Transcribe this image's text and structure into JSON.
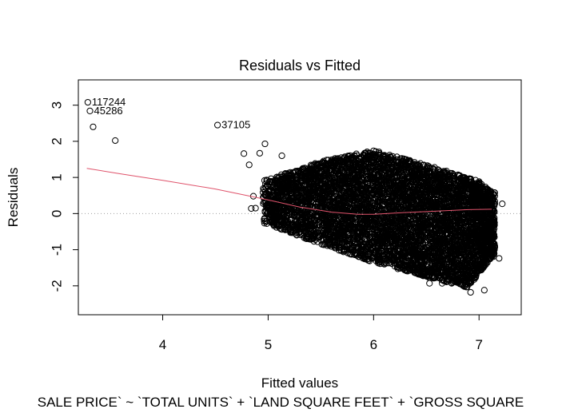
{
  "chart_data": {
    "type": "scatter",
    "title": "Residuals vs Fitted",
    "xlabel": "Fitted values",
    "ylabel": "Residuals",
    "subtitle": "SALE PRICE` ~ `TOTAL UNITS` + `LAND SQUARE FEET` + `GROSS SQUARE",
    "xlim": [
      3.2,
      7.4
    ],
    "ylim": [
      -2.8,
      3.7
    ],
    "x_ticks": [
      4,
      5,
      6,
      7
    ],
    "y_ticks": [
      -2,
      -1,
      0,
      1,
      2,
      3
    ],
    "zero_reference_line": 0,
    "grid": false,
    "legend": "none",
    "colors": {
      "points": "#000000",
      "smooth_line": "#df536b",
      "reference_line": "#a0a0a0"
    },
    "labeled_points": [
      {
        "label": "117244",
        "x": 3.29,
        "y": 3.08
      },
      {
        "label": "45286",
        "x": 3.31,
        "y": 2.84
      },
      {
        "label": "37105",
        "x": 4.52,
        "y": 2.45
      }
    ],
    "outlier_points": [
      {
        "x": 3.34,
        "y": 2.4
      },
      {
        "x": 3.55,
        "y": 2.02
      },
      {
        "x": 4.77,
        "y": 1.66
      },
      {
        "x": 4.82,
        "y": 1.35
      },
      {
        "x": 4.92,
        "y": 1.67
      },
      {
        "x": 4.97,
        "y": 1.93
      },
      {
        "x": 4.86,
        "y": 0.48
      },
      {
        "x": 4.84,
        "y": 0.14
      },
      {
        "x": 4.88,
        "y": 0.15
      },
      {
        "x": 5.13,
        "y": 1.6
      },
      {
        "x": 7.22,
        "y": 0.27
      },
      {
        "x": 7.19,
        "y": -1.24
      },
      {
        "x": 6.92,
        "y": -2.18
      },
      {
        "x": 7.05,
        "y": -2.12
      },
      {
        "x": 6.65,
        "y": -1.93
      },
      {
        "x": 6.53,
        "y": -1.93
      }
    ],
    "dense_cloud": {
      "x_range": [
        4.95,
        7.15
      ],
      "residual_upper_at_x": [
        [
          5.0,
          0.95
        ],
        [
          5.5,
          1.45
        ],
        [
          6.0,
          1.75
        ],
        [
          6.5,
          1.35
        ],
        [
          7.0,
          0.9
        ],
        [
          7.12,
          0.6
        ]
      ],
      "residual_lower_at_x": [
        [
          5.0,
          -0.3
        ],
        [
          5.5,
          -0.85
        ],
        [
          6.0,
          -1.35
        ],
        [
          6.5,
          -1.75
        ],
        [
          6.9,
          -2.05
        ],
        [
          7.12,
          -1.2
        ]
      ]
    },
    "smooth_line": [
      [
        3.28,
        1.25
      ],
      [
        3.6,
        1.1
      ],
      [
        4.0,
        0.92
      ],
      [
        4.5,
        0.68
      ],
      [
        5.0,
        0.38
      ],
      [
        5.3,
        0.18
      ],
      [
        5.6,
        0.04
      ],
      [
        5.85,
        -0.02
      ],
      [
        6.0,
        -0.02
      ],
      [
        6.3,
        0.03
      ],
      [
        6.6,
        0.07
      ],
      [
        6.9,
        0.11
      ],
      [
        7.12,
        0.12
      ]
    ]
  }
}
